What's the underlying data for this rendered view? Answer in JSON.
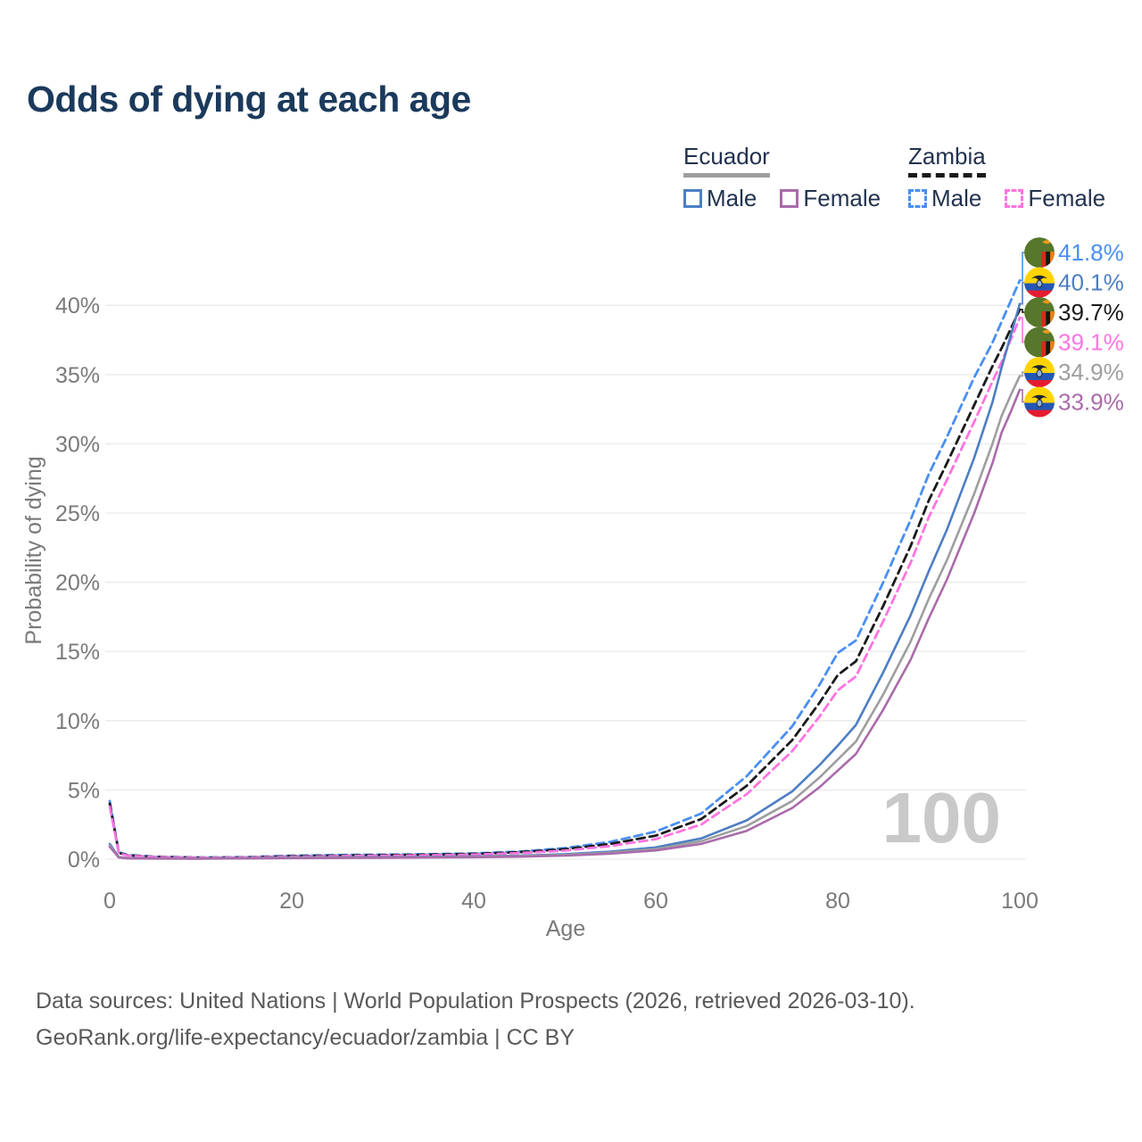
{
  "header": {
    "title": "Odds of dying at each age"
  },
  "colors": {
    "title": "#1b3a5c",
    "legend_text": "#22324f",
    "axis_text": "#7a7a7a",
    "grid": "#ededed",
    "watermark": "#c9c9c9",
    "footer_text": "#595959",
    "zambia_male": "#4a8ff2",
    "zambia_all": "#1a1a1a",
    "zambia_female": "#ff74e0",
    "ecuador_male": "#4d7ec3",
    "ecuador_all": "#9e9e9e",
    "ecuador_female": "#a96baa"
  },
  "legend": {
    "ecuador": {
      "country": "Ecuador",
      "male": "Male",
      "female": "Female"
    },
    "zambia": {
      "country": "Zambia",
      "male": "Male",
      "female": "Female"
    }
  },
  "chart_data": {
    "type": "line",
    "title": "Odds of dying at each age",
    "xlabel": "Age",
    "ylabel": "Probability of dying",
    "watermark": "100",
    "xlim": [
      0,
      100
    ],
    "ylim": [
      0,
      43
    ],
    "xticks": [
      0,
      20,
      40,
      60,
      80,
      100
    ],
    "yticks": [
      0,
      5,
      10,
      15,
      20,
      25,
      30,
      35,
      40
    ],
    "ytick_suffix": "%",
    "grid": "horizontal only",
    "legend_position": "top-right",
    "x": [
      0,
      1,
      2,
      5,
      10,
      15,
      20,
      25,
      30,
      35,
      40,
      45,
      50,
      55,
      60,
      65,
      70,
      75,
      78,
      80,
      82,
      85,
      88,
      90,
      92,
      95,
      97,
      98,
      99,
      100
    ],
    "series": [
      {
        "id": "zambia-male",
        "name": "Zambia Male",
        "color": "zambia_male",
        "dashed": true,
        "values": [
          4.2,
          0.5,
          0.3,
          0.18,
          0.12,
          0.15,
          0.25,
          0.3,
          0.33,
          0.36,
          0.42,
          0.55,
          0.8,
          1.25,
          2.0,
          3.3,
          6.0,
          9.6,
          12.6,
          14.9,
          15.8,
          20.0,
          24.5,
          27.8,
          30.5,
          34.8,
          37.3,
          38.8,
          40.3,
          41.8
        ]
      },
      {
        "id": "zambia-all",
        "name": "Zambia (both sexes)",
        "color": "zambia_all",
        "dashed": true,
        "values": [
          4.0,
          0.45,
          0.28,
          0.16,
          0.11,
          0.13,
          0.22,
          0.26,
          0.29,
          0.32,
          0.38,
          0.5,
          0.72,
          1.1,
          1.7,
          2.9,
          5.3,
          8.6,
          11.3,
          13.3,
          14.3,
          18.3,
          22.6,
          25.9,
          28.6,
          32.8,
          35.6,
          36.9,
          38.3,
          39.7
        ]
      },
      {
        "id": "zambia-female",
        "name": "Zambia Female",
        "color": "zambia_female",
        "dashed": true,
        "values": [
          3.8,
          0.42,
          0.26,
          0.15,
          0.1,
          0.12,
          0.18,
          0.22,
          0.25,
          0.28,
          0.33,
          0.44,
          0.62,
          0.95,
          1.45,
          2.5,
          4.7,
          7.8,
          10.3,
          12.2,
          13.2,
          17.2,
          21.4,
          24.7,
          27.4,
          31.6,
          34.5,
          35.9,
          37.5,
          39.1
        ]
      },
      {
        "id": "ecuador-male",
        "name": "Ecuador Male",
        "color": "ecuador_male",
        "dashed": false,
        "values": [
          1.1,
          0.15,
          0.08,
          0.06,
          0.05,
          0.08,
          0.12,
          0.14,
          0.15,
          0.17,
          0.2,
          0.26,
          0.36,
          0.55,
          0.85,
          1.5,
          2.8,
          4.9,
          6.8,
          8.2,
          9.7,
          13.5,
          17.6,
          20.8,
          23.8,
          29.0,
          33.0,
          35.5,
          37.8,
          40.1
        ]
      },
      {
        "id": "ecuador-all",
        "name": "Ecuador (both sexes)",
        "color": "ecuador_all",
        "dashed": false,
        "values": [
          1.0,
          0.13,
          0.07,
          0.05,
          0.045,
          0.07,
          0.1,
          0.12,
          0.13,
          0.14,
          0.17,
          0.22,
          0.3,
          0.47,
          0.73,
          1.3,
          2.4,
          4.2,
          5.9,
          7.2,
          8.5,
          11.9,
          15.7,
          18.8,
          21.6,
          26.4,
          30.0,
          32.0,
          33.5,
          34.9
        ]
      },
      {
        "id": "ecuador-female",
        "name": "Ecuador Female",
        "color": "ecuador_female",
        "dashed": false,
        "values": [
          0.9,
          0.12,
          0.06,
          0.045,
          0.04,
          0.06,
          0.08,
          0.09,
          0.1,
          0.12,
          0.14,
          0.18,
          0.26,
          0.4,
          0.63,
          1.1,
          2.05,
          3.7,
          5.2,
          6.4,
          7.6,
          10.8,
          14.4,
          17.4,
          20.2,
          25.0,
          28.6,
          30.8,
          32.3,
          33.9
        ]
      }
    ]
  },
  "annotations": [
    {
      "series": "Zambia Male",
      "label": "41.8%",
      "value": 41.8,
      "color": "zambia_male",
      "flag": "zambia"
    },
    {
      "series": "Ecuador Male",
      "label": "40.1%",
      "value": 40.1,
      "color": "ecuador_male",
      "flag": "ecuador"
    },
    {
      "series": "Zambia (both sexes)",
      "label": "39.7%",
      "value": 39.7,
      "color": "zambia_all",
      "flag": "zambia"
    },
    {
      "series": "Zambia Female",
      "label": "39.1%",
      "value": 39.1,
      "color": "zambia_female",
      "flag": "zambia"
    },
    {
      "series": "Ecuador (both sexes)",
      "label": "34.9%",
      "value": 34.9,
      "color": "ecuador_all",
      "flag": "ecuador"
    },
    {
      "series": "Ecuador Female",
      "label": "33.9%",
      "value": 33.9,
      "color": "ecuador_female",
      "flag": "ecuador"
    }
  ],
  "footer": {
    "line1": "Data sources: United Nations | World Population Prospects (2026, retrieved 2026-03-10).",
    "line2": "GeoRank.org/life-expectancy/ecuador/zambia | CC BY"
  }
}
